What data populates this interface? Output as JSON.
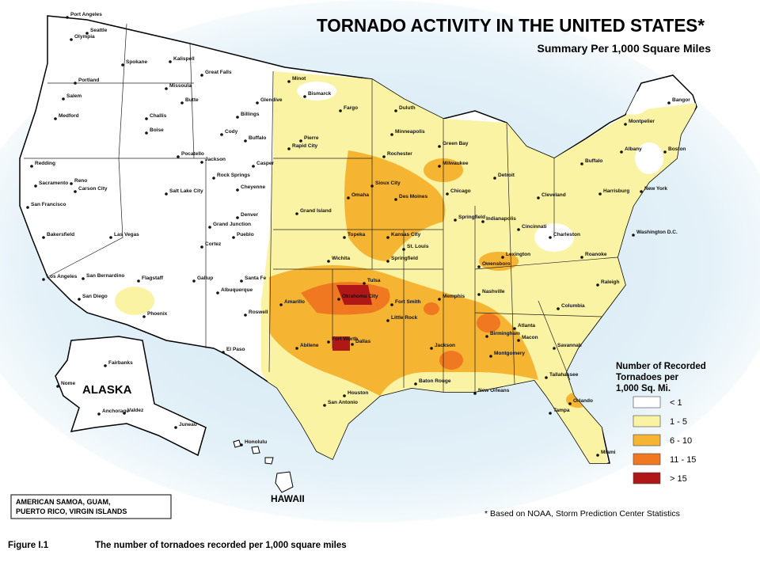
{
  "header": {
    "title": "TORNADO ACTIVITY IN THE UNITED STATES*",
    "subtitle": "Summary Per 1,000 Square Miles"
  },
  "legend": {
    "title": [
      "Number of Recorded",
      "Tornadoes per",
      "1,000 Sq. Mi."
    ],
    "items": [
      {
        "label": "< 1",
        "color": "#ffffff"
      },
      {
        "label": "1 - 5",
        "color": "#fbf3a4"
      },
      {
        "label": "6 - 10",
        "color": "#f5b432"
      },
      {
        "label": "11 - 15",
        "color": "#f07820"
      },
      {
        "label": "> 15",
        "color": "#b01818"
      }
    ]
  },
  "labels": {
    "alaska": "ALASKA",
    "hawaii": "HAWAII"
  },
  "inset": [
    "AMERICAN SAMOA,  GUAM,",
    "PUERTO RICO, VIRGIN ISLANDS"
  ],
  "footnote": "* Based on NOAA, Storm Prediction Center Statistics",
  "caption": {
    "figure": "Figure I.1",
    "text": "The number of tornadoes recorded per 1,000 square miles"
  },
  "cities": [
    "Port Angeles",
    "Seattle",
    "Olympia",
    "Spokane",
    "Portland",
    "Salem",
    "Medford",
    "Challis",
    "Boise",
    "Kalispell",
    "Great Falls",
    "Missoula",
    "Butte",
    "Glendive",
    "Billings",
    "Cody",
    "Buffalo",
    "Pocatello",
    "Jackson",
    "Casper",
    "Rock Springs",
    "Cheyenne",
    "Salt Lake City",
    "Redding",
    "Sacramento",
    "Reno",
    "Carson City",
    "San Francisco",
    "Denver",
    "Grand Junction",
    "Pueblo",
    "Cortez",
    "Las Vegas",
    "Bakersfield",
    "Los Angeles",
    "San Bernardino",
    "San Diego",
    "Flagstaff",
    "Phoenix",
    "Gallup",
    "Albuquerque",
    "Santa Fe",
    "Roswell",
    "El Paso",
    "Minot",
    "Bismarck",
    "Fargo",
    "Pierre",
    "Rapid City",
    "Duluth",
    "Minneapolis",
    "Green Bay",
    "Rochester",
    "Milwaukee",
    "Sioux City",
    "Omaha",
    "Des Moines",
    "Grand Island",
    "Chicago",
    "Springfield",
    "Topeka",
    "Kansas City",
    "St. Louis",
    "Wichita",
    "Springfield",
    "Indianapolis",
    "Cincinnati",
    "Detroit",
    "Cleveland",
    "Lexington",
    "Owensboro",
    "Nashville",
    "Charleston",
    "Roanoke",
    "Raleigh",
    "Harrisburg",
    "Buffalo",
    "Albany",
    "New York",
    "Boston",
    "Bangor",
    "Montpelier",
    "Washington D.C.",
    "Amarillo",
    "Tulsa",
    "Oklahoma City",
    "Fort Smith",
    "Little Rock",
    "Memphis",
    "Birmingham",
    "Atlanta",
    "Macon",
    "Columbia",
    "Savannah",
    "Jackson",
    "Montgomery",
    "Abilene",
    "Fort Worth",
    "Dallas",
    "Houston",
    "San Antonio",
    "Baton Rouge",
    "New Orleans",
    "Tallahassee",
    "Orlando",
    "Tampa",
    "Miami",
    "Fairbanks",
    "Nome",
    "Anchorage",
    "Valdez",
    "Juneau",
    "Honolulu"
  ]
}
